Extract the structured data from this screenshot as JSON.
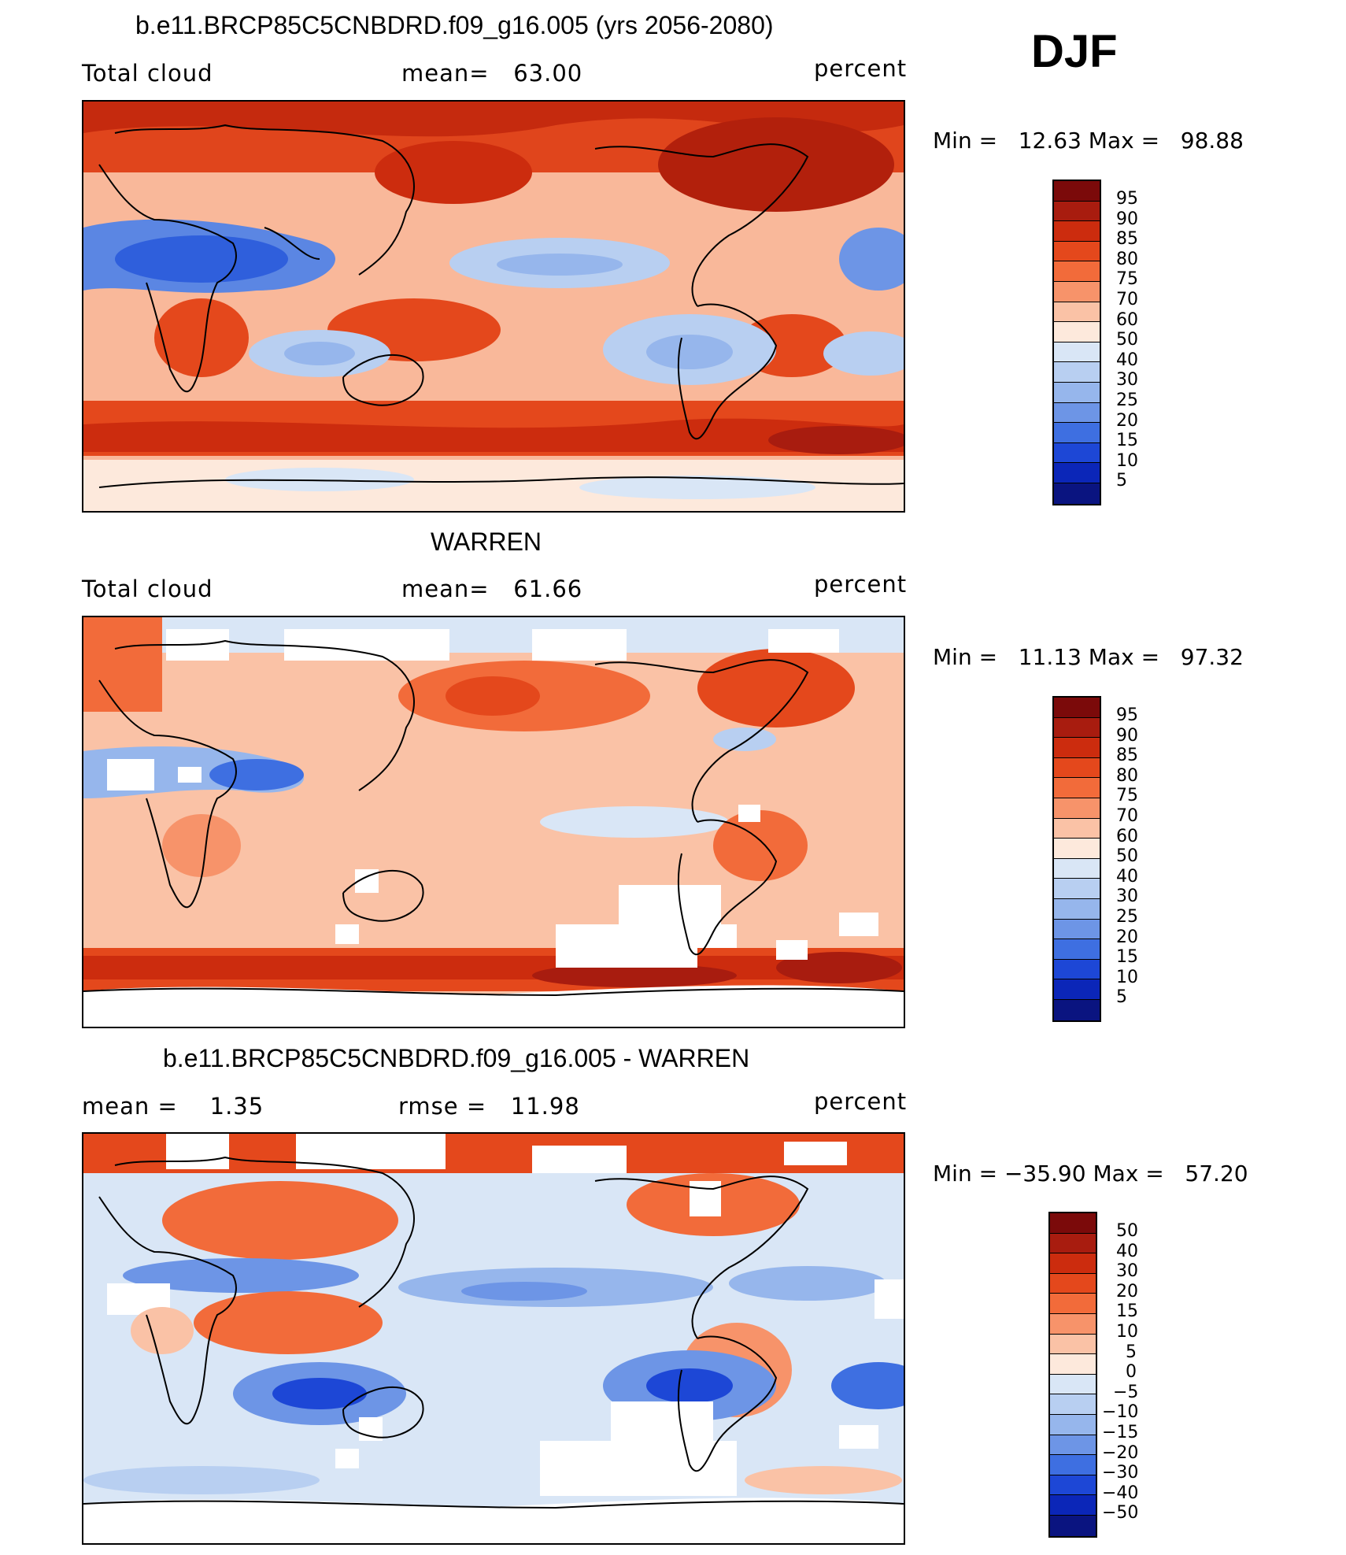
{
  "season": "DJF",
  "panels": [
    {
      "title": "b.e11.BRCP85C5CNBDRD.f09_g16.005 (yrs 2056-2080)",
      "left_label": "Total cloud",
      "center_label": "mean=   63.00",
      "units": "percent",
      "minmax": "Min =   12.63 Max =   98.88",
      "colorbar": [
        "95",
        "90",
        "85",
        "80",
        "75",
        "70",
        "60",
        "50",
        "40",
        "30",
        "25",
        "20",
        "15",
        "10",
        "5"
      ]
    },
    {
      "title": "WARREN",
      "left_label": "Total cloud",
      "center_label": "mean=   61.66",
      "units": "percent",
      "minmax": "Min =   11.13 Max =   97.32",
      "colorbar": [
        "95",
        "90",
        "85",
        "80",
        "75",
        "70",
        "60",
        "50",
        "40",
        "30",
        "25",
        "20",
        "15",
        "10",
        "5"
      ]
    },
    {
      "title": "b.e11.BRCP85C5CNBDRD.f09_g16.005 - WARREN",
      "left_label": "mean =    1.35",
      "center_label": "rmse =   11.98",
      "units": "percent",
      "minmax": "Min = −35.90 Max =   57.20",
      "colorbar": [
        "50",
        "40",
        "30",
        "20",
        "15",
        "10",
        "5",
        "0",
        "−5",
        "−10",
        "−15",
        "−20",
        "−30",
        "−40",
        "−50"
      ]
    }
  ],
  "colors": {
    "scale": [
      "#7b0a0a",
      "#a81c0f",
      "#cc2c0e",
      "#e4481c",
      "#f26b3a",
      "#f7936a",
      "#fac2a6",
      "#fde9dc",
      "#d9e6f6",
      "#b8cff1",
      "#96b6ec",
      "#6d95e6",
      "#3e6fe1",
      "#1d47d6",
      "#0b26b8",
      "#0a1480"
    ]
  }
}
